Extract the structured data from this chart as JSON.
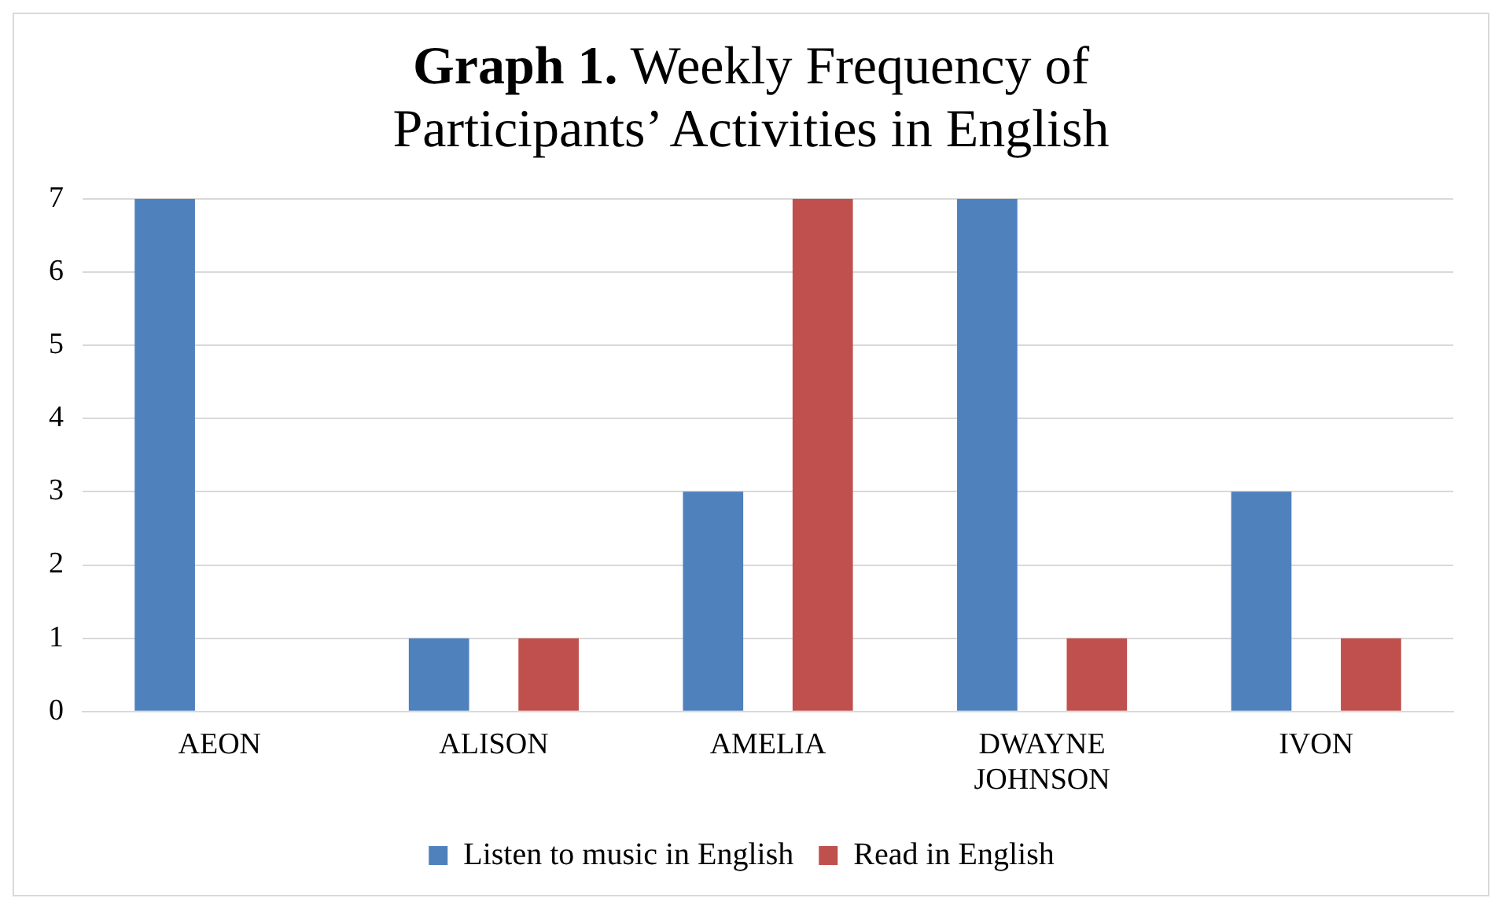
{
  "chart_data": {
    "type": "bar",
    "title": "Graph 1. Weekly Frequency of Participants’ Activities in English",
    "categories": [
      "AEON",
      "ALISON",
      "AMELIA",
      "DWAYNE JOHNSON",
      "IVON"
    ],
    "series": [
      {
        "name": "Listen to music in English",
        "color": "#4f81bd",
        "values": [
          7,
          1,
          3,
          7,
          3
        ]
      },
      {
        "name": "Read in English",
        "color": "#c0504d",
        "values": [
          0,
          1,
          7,
          1,
          1
        ]
      }
    ],
    "ylim": [
      0,
      7
    ],
    "yticks": [
      0,
      1,
      2,
      3,
      4,
      5,
      6,
      7
    ],
    "grid": "y",
    "legend": "bottom"
  }
}
